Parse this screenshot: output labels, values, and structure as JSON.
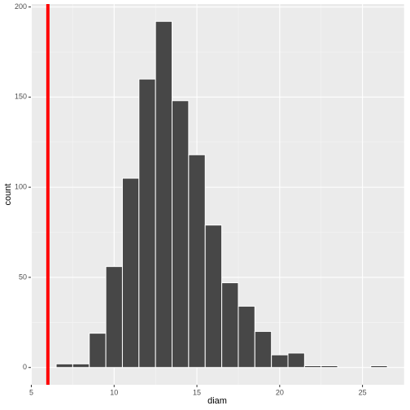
{
  "chart_data": {
    "type": "histogram",
    "x_label": "diam",
    "y_label": "count",
    "bins": [
      6.5,
      7.5,
      8.5,
      9.5,
      10.5,
      11.5,
      12.5,
      13.5,
      14.5,
      15.5,
      16.5,
      17.5,
      18.5,
      19.5,
      20.5,
      21.5,
      22.5,
      23.5,
      24.5,
      25.5,
      26.5
    ],
    "values": [
      2,
      2,
      19,
      56,
      105,
      160,
      192,
      148,
      118,
      79,
      47,
      34,
      20,
      7,
      8,
      1,
      1,
      0,
      0,
      1
    ],
    "color": "#474747",
    "xlim": [
      4.975,
      27.525
    ],
    "ylim": [
      -9.6,
      201.6
    ],
    "xticks": [
      5,
      10,
      15,
      20,
      25
    ],
    "yticks": [
      0,
      50,
      100,
      150,
      200
    ],
    "xminor": [
      7.5,
      12.5,
      17.5,
      22.5,
      27.5
    ],
    "yminor": [
      25,
      75,
      125,
      175
    ],
    "grid": true,
    "vline": {
      "value": 6,
      "color": "#ff0000"
    }
  }
}
